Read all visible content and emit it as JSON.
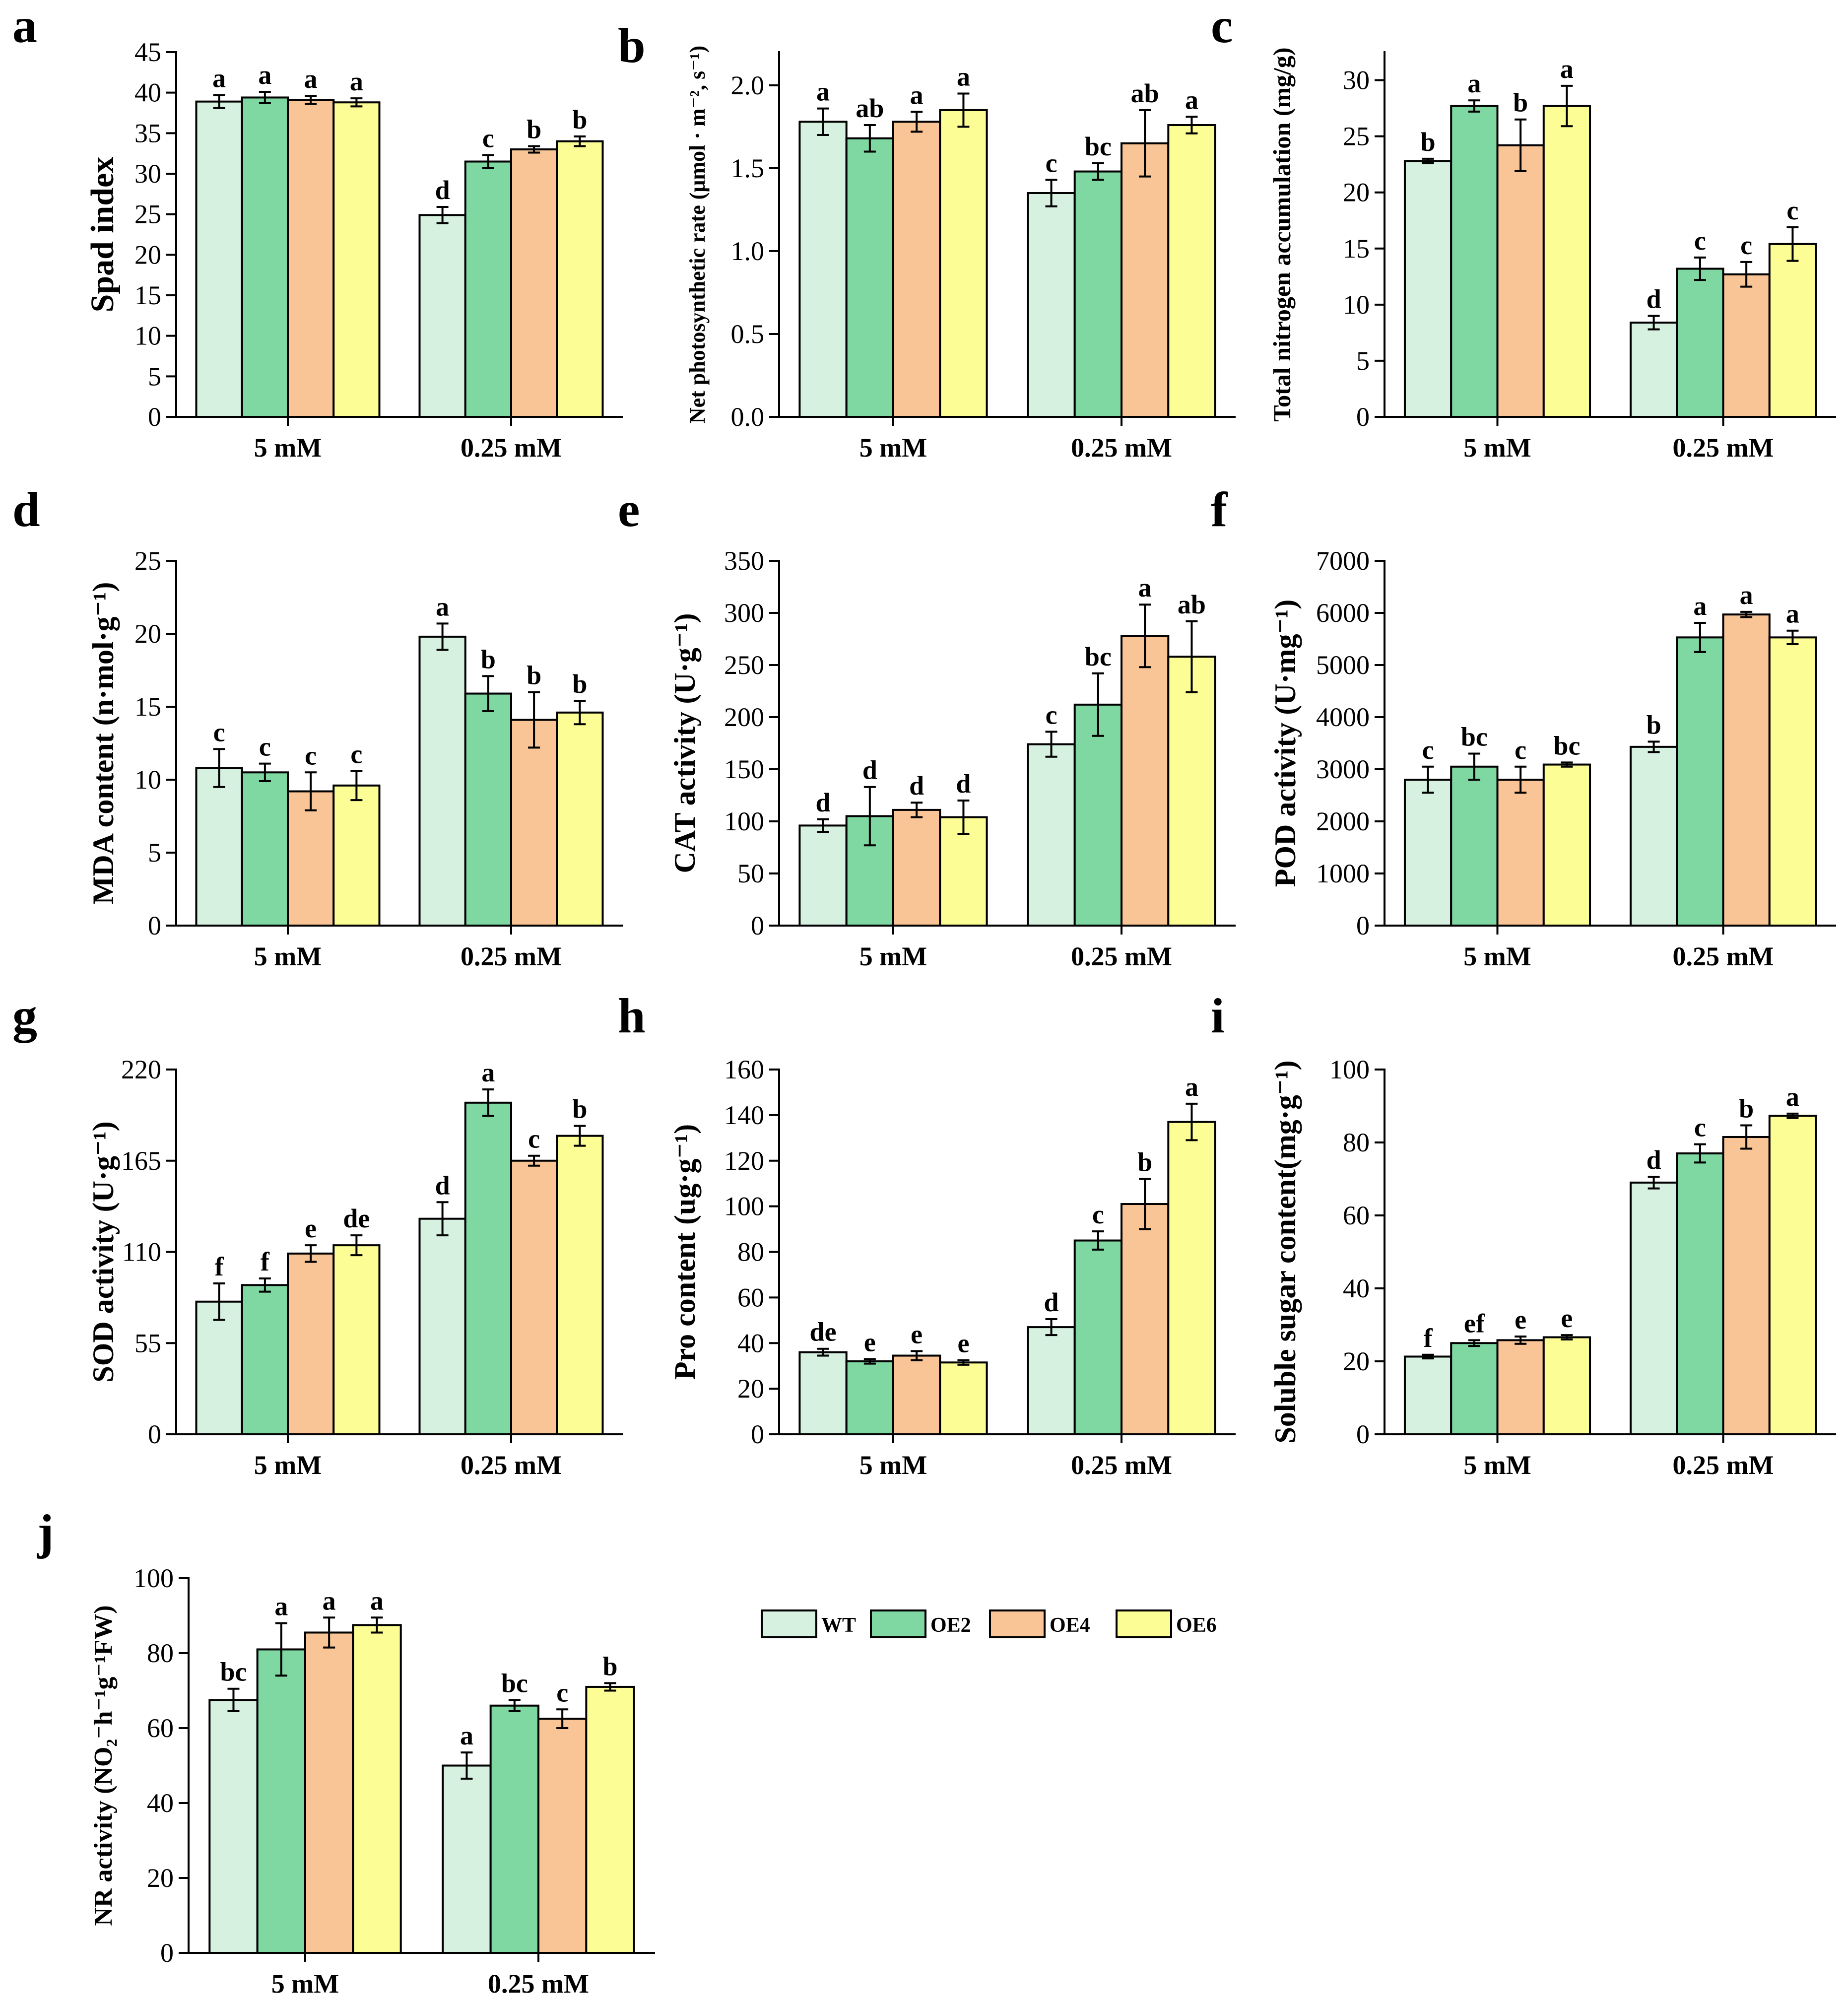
{
  "figure_title": "",
  "legend": {
    "items": [
      {
        "name": "WT",
        "color": "#d6f1e0"
      },
      {
        "name": "OE2",
        "color": "#7fd8a2"
      },
      {
        "name": "OE4",
        "color": "#f9c596"
      },
      {
        "name": "OE6",
        "color": "#fdfd96"
      }
    ]
  },
  "chart_data": [
    {
      "type": "bar",
      "panel": "a",
      "title": "",
      "ylabel": "Spad index",
      "categories": [
        "5 mM",
        "0.25 mM"
      ],
      "ylim": [
        0,
        45
      ],
      "yticks": [
        0,
        5,
        10,
        15,
        20,
        25,
        30,
        35,
        40,
        45
      ],
      "series": [
        {
          "name": "WT",
          "values": [
            38.9,
            24.9
          ],
          "errors": [
            0.8,
            1.0
          ],
          "letters": [
            "a",
            "d"
          ]
        },
        {
          "name": "OE2",
          "values": [
            39.4,
            31.5
          ],
          "errors": [
            0.7,
            0.8
          ],
          "letters": [
            "a",
            "c"
          ]
        },
        {
          "name": "OE4",
          "values": [
            39.1,
            33.0
          ],
          "errors": [
            0.5,
            0.4
          ],
          "letters": [
            "a",
            "b"
          ]
        },
        {
          "name": "OE6",
          "values": [
            38.8,
            34.0
          ],
          "errors": [
            0.5,
            0.6
          ],
          "letters": [
            "a",
            "b"
          ]
        }
      ]
    },
    {
      "type": "bar",
      "panel": "b",
      "title": "",
      "ylabel": "Net photosynthetic rate (μmol · m⁻², s⁻¹)",
      "categories": [
        "5 mM",
        "0.25 mM"
      ],
      "ylim": [
        0,
        2.2
      ],
      "yticks": [
        0.0,
        0.5,
        1.0,
        1.5,
        2.0
      ],
      "tick_decimals": 1,
      "series": [
        {
          "name": "WT",
          "values": [
            1.78,
            1.35
          ],
          "errors": [
            0.08,
            0.08
          ],
          "letters": [
            "a",
            "c"
          ]
        },
        {
          "name": "OE2",
          "values": [
            1.68,
            1.48
          ],
          "errors": [
            0.08,
            0.05
          ],
          "letters": [
            "ab",
            "bc"
          ]
        },
        {
          "name": "OE4",
          "values": [
            1.78,
            1.65
          ],
          "errors": [
            0.06,
            0.2
          ],
          "letters": [
            "a",
            "ab"
          ]
        },
        {
          "name": "OE6",
          "values": [
            1.85,
            1.76
          ],
          "errors": [
            0.1,
            0.05
          ],
          "letters": [
            "a",
            "a"
          ]
        }
      ]
    },
    {
      "type": "bar",
      "panel": "c",
      "title": "",
      "ylabel": "Total nitrogen accumulation (mg/g)",
      "categories": [
        "5 mM",
        "0.25 mM"
      ],
      "ylim": [
        0,
        32.5
      ],
      "yticks": [
        0,
        5,
        10,
        15,
        20,
        25,
        30
      ],
      "series": [
        {
          "name": "WT",
          "values": [
            22.8,
            8.4
          ],
          "errors": [
            0.2,
            0.6
          ],
          "letters": [
            "b",
            "d"
          ]
        },
        {
          "name": "OE2",
          "values": [
            27.7,
            13.2
          ],
          "errors": [
            0.5,
            1.0
          ],
          "letters": [
            "a",
            "c"
          ]
        },
        {
          "name": "OE4",
          "values": [
            24.2,
            12.7
          ],
          "errors": [
            2.3,
            1.1
          ],
          "letters": [
            "b",
            "c"
          ]
        },
        {
          "name": "OE6",
          "values": [
            27.7,
            15.4
          ],
          "errors": [
            1.8,
            1.5
          ],
          "letters": [
            "a",
            "c"
          ]
        }
      ]
    },
    {
      "type": "bar",
      "panel": "d",
      "title": "",
      "ylabel": "MDA content (n·mol·g⁻¹)",
      "categories": [
        "5 mM",
        "0.25 mM"
      ],
      "ylim": [
        0,
        25
      ],
      "yticks": [
        0,
        5,
        10,
        15,
        20,
        25
      ],
      "series": [
        {
          "name": "WT",
          "values": [
            10.8,
            19.8
          ],
          "errors": [
            1.3,
            0.9
          ],
          "letters": [
            "c",
            "a"
          ]
        },
        {
          "name": "OE2",
          "values": [
            10.5,
            15.9
          ],
          "errors": [
            0.6,
            1.2
          ],
          "letters": [
            "c",
            "b"
          ]
        },
        {
          "name": "OE4",
          "values": [
            9.2,
            14.1
          ],
          "errors": [
            1.3,
            1.9
          ],
          "letters": [
            "c",
            "b"
          ]
        },
        {
          "name": "OE6",
          "values": [
            9.6,
            14.6
          ],
          "errors": [
            1.0,
            0.8
          ],
          "letters": [
            "c",
            "b"
          ]
        }
      ]
    },
    {
      "type": "bar",
      "panel": "e",
      "title": "",
      "ylabel": "CAT activity (U·g⁻¹)",
      "categories": [
        "5 mM",
        "0.25 mM"
      ],
      "ylim": [
        0,
        350
      ],
      "yticks": [
        0,
        50,
        100,
        150,
        200,
        250,
        300,
        350
      ],
      "series": [
        {
          "name": "WT",
          "values": [
            96,
            174
          ],
          "errors": [
            6,
            12
          ],
          "letters": [
            "d",
            "c"
          ]
        },
        {
          "name": "OE2",
          "values": [
            105,
            212
          ],
          "errors": [
            28,
            30
          ],
          "letters": [
            "d",
            "bc"
          ]
        },
        {
          "name": "OE4",
          "values": [
            111,
            278
          ],
          "errors": [
            7,
            30
          ],
          "letters": [
            "d",
            "a"
          ]
        },
        {
          "name": "OE6",
          "values": [
            104,
            258
          ],
          "errors": [
            16,
            34
          ],
          "letters": [
            "d",
            "ab"
          ]
        }
      ]
    },
    {
      "type": "bar",
      "panel": "f",
      "title": "",
      "ylabel": "POD activity (U·mg⁻¹)",
      "categories": [
        "5 mM",
        "0.25 mM"
      ],
      "ylim": [
        0,
        7000
      ],
      "yticks": [
        0,
        1000,
        2000,
        3000,
        4000,
        5000,
        6000,
        7000
      ],
      "series": [
        {
          "name": "WT",
          "values": [
            2800,
            3430
          ],
          "errors": [
            250,
            100
          ],
          "letters": [
            "c",
            "b"
          ]
        },
        {
          "name": "OE2",
          "values": [
            3050,
            5530
          ],
          "errors": [
            250,
            280
          ],
          "letters": [
            "bc",
            "a"
          ]
        },
        {
          "name": "OE4",
          "values": [
            2800,
            5970
          ],
          "errors": [
            250,
            50
          ],
          "letters": [
            "c",
            "a"
          ]
        },
        {
          "name": "OE6",
          "values": [
            3090,
            5530
          ],
          "errors": [
            40,
            130
          ],
          "letters": [
            "bc",
            "a"
          ]
        }
      ]
    },
    {
      "type": "bar",
      "panel": "g",
      "title": "",
      "ylabel": "SOD activity (U·g⁻¹)",
      "categories": [
        "5 mM",
        "0.25 mM"
      ],
      "ylim": [
        0,
        220
      ],
      "yticks": [
        0,
        55,
        110,
        165,
        220
      ],
      "series": [
        {
          "name": "WT",
          "values": [
            80,
            130
          ],
          "errors": [
            11,
            10
          ],
          "letters": [
            "f",
            "d"
          ]
        },
        {
          "name": "OE2",
          "values": [
            90,
            200
          ],
          "errors": [
            4,
            8
          ],
          "letters": [
            "f",
            "a"
          ]
        },
        {
          "name": "OE4",
          "values": [
            109,
            165
          ],
          "errors": [
            5,
            3
          ],
          "letters": [
            "e",
            "c"
          ]
        },
        {
          "name": "OE6",
          "values": [
            114,
            180
          ],
          "errors": [
            6,
            6
          ],
          "letters": [
            "de",
            "b"
          ]
        }
      ]
    },
    {
      "type": "bar",
      "panel": "h",
      "title": "",
      "ylabel": "Pro content (ug·g⁻¹)",
      "categories": [
        "5 mM",
        "0.25 mM"
      ],
      "ylim": [
        0,
        160
      ],
      "yticks": [
        0,
        20,
        40,
        60,
        80,
        100,
        120,
        140,
        160
      ],
      "series": [
        {
          "name": "WT",
          "values": [
            36,
            47
          ],
          "errors": [
            1.5,
            3.5
          ],
          "letters": [
            "de",
            "d"
          ]
        },
        {
          "name": "OE2",
          "values": [
            32,
            85
          ],
          "errors": [
            1.0,
            4.0
          ],
          "letters": [
            "e",
            "c"
          ]
        },
        {
          "name": "OE4",
          "values": [
            34.5,
            101
          ],
          "errors": [
            2.0,
            11
          ],
          "letters": [
            "e",
            "b"
          ]
        },
        {
          "name": "OE6",
          "values": [
            31.5,
            137
          ],
          "errors": [
            1.0,
            8
          ],
          "letters": [
            "e",
            "a"
          ]
        }
      ]
    },
    {
      "type": "bar",
      "panel": "i",
      "title": "",
      "ylabel": "Soluble sugar content(mg·g⁻¹)",
      "categories": [
        "5 mM",
        "0.25 mM"
      ],
      "ylim": [
        0,
        100
      ],
      "yticks": [
        0,
        20,
        40,
        60,
        80,
        100
      ],
      "series": [
        {
          "name": "WT",
          "values": [
            21.3,
            69
          ],
          "errors": [
            0.5,
            1.6
          ],
          "letters": [
            "f",
            "d"
          ]
        },
        {
          "name": "OE2",
          "values": [
            25.0,
            77
          ],
          "errors": [
            0.8,
            2.5
          ],
          "letters": [
            "ef",
            "c"
          ]
        },
        {
          "name": "OE4",
          "values": [
            25.8,
            81.5
          ],
          "errors": [
            1.0,
            3.2
          ],
          "letters": [
            "e",
            "b"
          ]
        },
        {
          "name": "OE6",
          "values": [
            26.6,
            87.3
          ],
          "errors": [
            0.6,
            0.6
          ],
          "letters": [
            "e",
            "a"
          ]
        }
      ]
    },
    {
      "type": "bar",
      "panel": "j",
      "title": "",
      "ylabel": "NR activity (NO₂⁻h⁻¹g⁻¹FW)",
      "categories": [
        "5 mM",
        "0.25 mM"
      ],
      "ylim": [
        0,
        100
      ],
      "yticks": [
        0,
        20,
        40,
        60,
        80,
        100
      ],
      "series": [
        {
          "name": "WT",
          "values": [
            67.5,
            50
          ],
          "errors": [
            3.0,
            3.5
          ],
          "letters": [
            "bc",
            "a"
          ]
        },
        {
          "name": "OE2",
          "values": [
            81,
            66
          ],
          "errors": [
            7.0,
            1.5
          ],
          "letters": [
            "a",
            "bc"
          ]
        },
        {
          "name": "OE4",
          "values": [
            85.5,
            62.5
          ],
          "errors": [
            4.0,
            2.5
          ],
          "letters": [
            "a",
            "c"
          ]
        },
        {
          "name": "OE6",
          "values": [
            87.5,
            71
          ],
          "errors": [
            2.0,
            1.0
          ],
          "letters": [
            "a",
            "b"
          ]
        }
      ]
    }
  ]
}
